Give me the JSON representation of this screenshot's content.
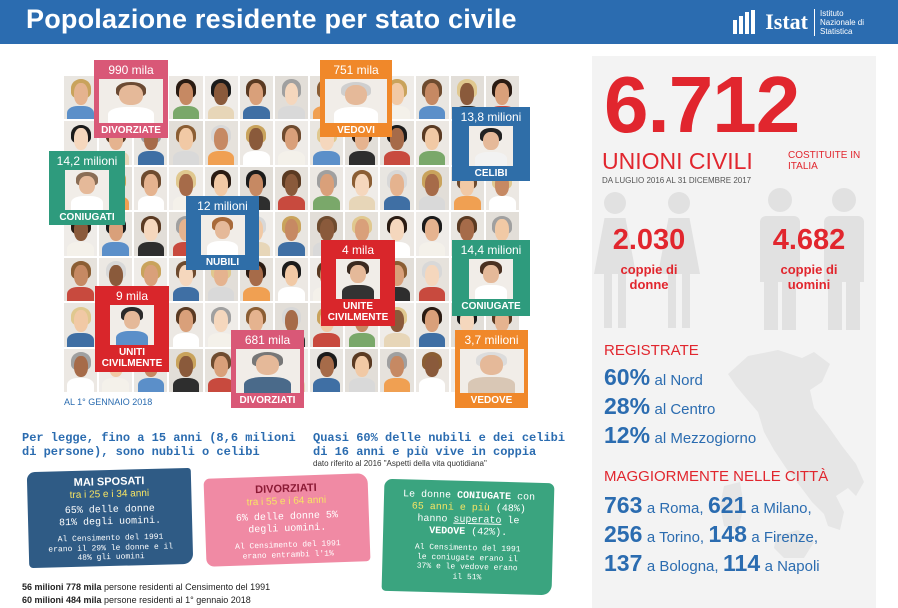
{
  "header": {
    "title": "Popolazione residente per stato civile",
    "logo_name": "Istat",
    "logo_sub": "Istituto Nazionale di Statistica",
    "bg_color": "#2b6cb0"
  },
  "grid_labels": {
    "divorziate": {
      "value": "990 mila",
      "caption": "DIVORZIATE"
    },
    "vedovi": {
      "value": "751 mila",
      "caption": "VEDOVI"
    },
    "celibi": {
      "value": "13,8 milioni",
      "caption": "CELIBI"
    },
    "coniugati": {
      "value": "14,2 milioni",
      "caption": "CONIUGATI"
    },
    "nubili": {
      "value": "12 milioni",
      "caption": "NUBILI"
    },
    "unite_civilmente": {
      "value": "4 mila",
      "caption": "UNITE CIVILMENTE"
    },
    "coniugate": {
      "value": "14,4 milioni",
      "caption": "CONIUGATE"
    },
    "uniti_civilmente": {
      "value": "9 mila",
      "caption": "UNITI CIVILMENTE"
    },
    "divorziati": {
      "value": "681 mila",
      "caption": "DIVORZIATI"
    },
    "vedove": {
      "value": "3,7 milioni",
      "caption": "VEDOVE"
    }
  },
  "as_of": "AL 1° GENNAIO 2018",
  "statements": {
    "by_law": "Per legge, fino a 15 anni (8,6 milioni di persone), sono nubili o celibi",
    "couples": "Quasi 60% delle nubili e dei celibi di 16 anni e più vive in coppia",
    "couples_note": "dato riferito al 2016 \"Aspetti della vita quotidiana\""
  },
  "panels": {
    "mai_sposati": {
      "head": "MAI SPOSATI",
      "range": "tra i 25 e i 34 anni",
      "body": "65% delle donne 81% degli uomini.",
      "foot": "Al Censimento del 1991 erano il 29% le donne e il 48% gli uomini"
    },
    "divorziati": {
      "head": "DIVORZIATI",
      "range": "tra i 55 e i 64 anni",
      "body": "6% delle donne 5% degli uomini.",
      "foot": "Al Censimento del 1991 erano entrambi l'1%"
    },
    "coniugate": {
      "head_a": "Le donne ",
      "head_b": "CONIUGATE",
      "head_c": " con ",
      "head_d": "65 anni e più",
      "head_e": " (48%) hanno ",
      "head_f": "superato",
      "head_g": " le ",
      "head_h": "VEDOVE",
      "head_i": " (42%).",
      "foot": "Al Censimento del 1991 le coniugate erano il 37% e le vedove erano il 51%"
    }
  },
  "footer": {
    "line1_value": "56 milioni 778 mila",
    "line1_text": " persone residenti al Censimento del 1991",
    "line2_value": "60 milioni 484 mila",
    "line2_text": " persone residenti al 1° gennaio 2018"
  },
  "right": {
    "big_number": "6.712",
    "unioni": "UNIONI CIVILI",
    "costituite": "COSTITUITE IN ITALIA",
    "period": "DA LUGLIO 2016 AL 31 DICEMBRE 2017",
    "donne": {
      "value": "2.030",
      "label": "coppie di donne"
    },
    "uomini": {
      "value": "4.682",
      "label": "coppie di uomini"
    },
    "registrate_title": "REGISTRATE",
    "regions": [
      {
        "value": "60%",
        "text": "al Nord"
      },
      {
        "value": "28%",
        "text": "al Centro"
      },
      {
        "value": "12%",
        "text": "al Mezzogiorno"
      }
    ],
    "cities_title": "MAGGIORMENTE NELLE CITTÀ",
    "cities": [
      {
        "v1": "763",
        "t1": "a Roma,",
        "v2": "621",
        "t2": "a Milano,"
      },
      {
        "v1": "256",
        "t1": "a Torino,",
        "v2": "148",
        "t2": "a Firenze,"
      },
      {
        "v1": "137",
        "t1": "a Bologna,",
        "v2": "114",
        "t2": "a Napoli"
      }
    ],
    "accent_color": "#e1262e"
  }
}
